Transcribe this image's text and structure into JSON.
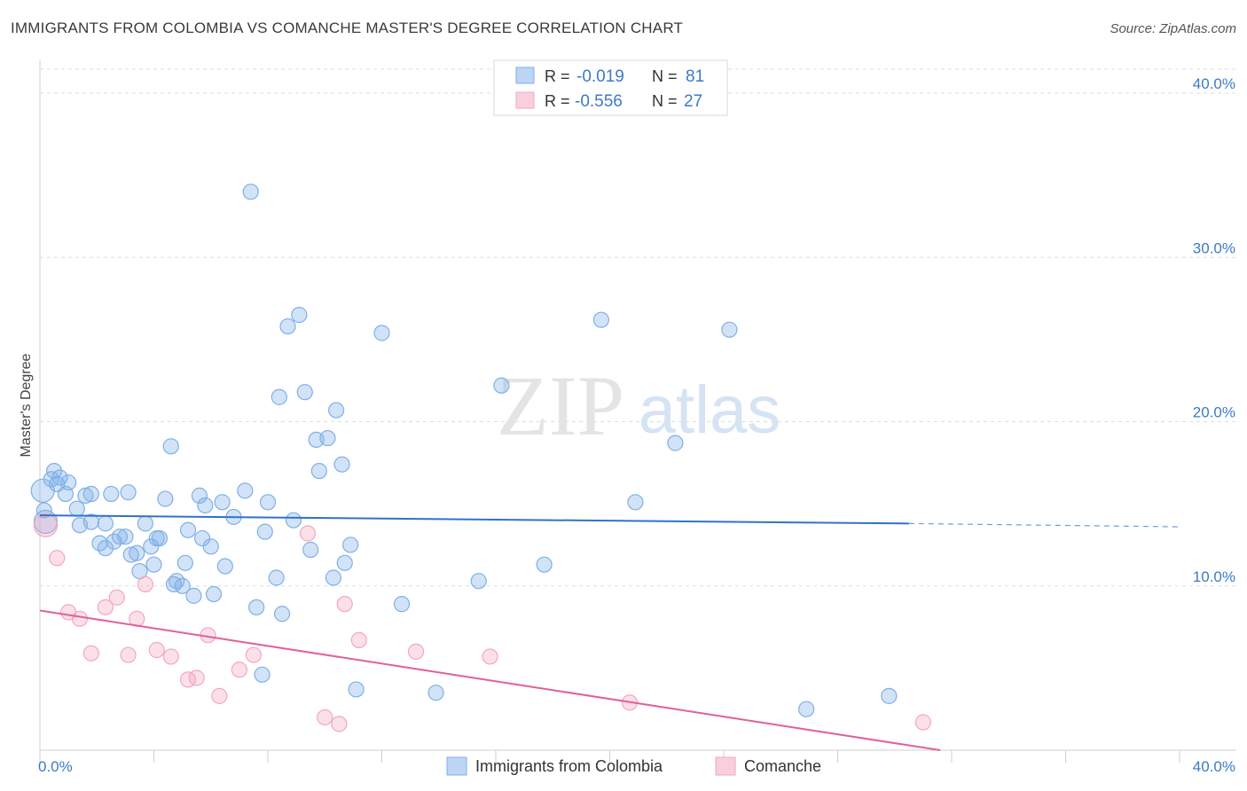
{
  "title": "IMMIGRANTS FROM COLOMBIA VS COMANCHE MASTER'S DEGREE CORRELATION CHART",
  "source": "Source: ZipAtlas.com",
  "watermark": {
    "zip": "ZIP",
    "atlas": "atlas"
  },
  "chart_data": {
    "type": "scatter",
    "xlabel": "",
    "ylabel": "Master's Degree",
    "xlim": [
      0,
      40
    ],
    "ylim": [
      0,
      42
    ],
    "x_tick_labels": [
      "0.0%",
      "40.0%"
    ],
    "y_ticks": [
      10,
      20,
      30,
      40
    ],
    "y_tick_labels": [
      "10.0%",
      "20.0%",
      "30.0%",
      "40.0%"
    ],
    "grid": true,
    "legend_position": "bottom",
    "stats": [
      {
        "r_label": "R =",
        "r_value": "-0.019",
        "n_label": "N =",
        "n_value": "81"
      },
      {
        "r_label": "R =",
        "r_value": "-0.556",
        "n_label": "N =",
        "n_value": "27"
      }
    ],
    "series": [
      {
        "name": "Immigrants from Colombia",
        "color": "#7fb0e8",
        "line_color": "#2f73c8",
        "trend": {
          "x": [
            0,
            30.5
          ],
          "y": [
            14.3,
            13.8
          ]
        },
        "trend_dashed": {
          "x": [
            30.5,
            40
          ],
          "y": [
            13.8,
            13.6
          ]
        },
        "points": [
          [
            0.2,
            13.9
          ],
          [
            0.1,
            15.8
          ],
          [
            0.5,
            17.0
          ],
          [
            0.4,
            16.5
          ],
          [
            0.7,
            16.6
          ],
          [
            0.6,
            16.2
          ],
          [
            1.0,
            16.3
          ],
          [
            0.9,
            15.6
          ],
          [
            1.3,
            14.7
          ],
          [
            1.4,
            13.7
          ],
          [
            1.6,
            15.5
          ],
          [
            1.8,
            15.6
          ],
          [
            1.8,
            13.9
          ],
          [
            2.1,
            12.6
          ],
          [
            2.3,
            12.3
          ],
          [
            2.3,
            13.8
          ],
          [
            2.5,
            15.6
          ],
          [
            2.6,
            12.7
          ],
          [
            2.8,
            13.0
          ],
          [
            3.0,
            13.0
          ],
          [
            3.1,
            15.7
          ],
          [
            3.2,
            11.9
          ],
          [
            3.4,
            12.0
          ],
          [
            3.5,
            10.9
          ],
          [
            3.7,
            13.8
          ],
          [
            3.9,
            12.4
          ],
          [
            4.0,
            11.3
          ],
          [
            4.1,
            12.9
          ],
          [
            4.2,
            12.9
          ],
          [
            4.4,
            15.3
          ],
          [
            4.6,
            18.5
          ],
          [
            4.7,
            10.1
          ],
          [
            4.8,
            10.3
          ],
          [
            5.0,
            10.0
          ],
          [
            5.1,
            11.4
          ],
          [
            5.2,
            13.4
          ],
          [
            5.4,
            9.4
          ],
          [
            5.6,
            15.5
          ],
          [
            5.7,
            12.9
          ],
          [
            5.8,
            14.9
          ],
          [
            6.0,
            12.4
          ],
          [
            6.1,
            9.5
          ],
          [
            6.4,
            15.1
          ],
          [
            6.5,
            11.2
          ],
          [
            6.8,
            14.2
          ],
          [
            7.2,
            15.8
          ],
          [
            7.4,
            34.0
          ],
          [
            7.6,
            8.7
          ],
          [
            7.8,
            4.6
          ],
          [
            7.9,
            13.3
          ],
          [
            8.0,
            15.1
          ],
          [
            8.3,
            10.5
          ],
          [
            8.4,
            21.5
          ],
          [
            8.5,
            8.3
          ],
          [
            8.7,
            25.8
          ],
          [
            8.9,
            14.0
          ],
          [
            9.1,
            26.5
          ],
          [
            9.3,
            21.8
          ],
          [
            9.5,
            12.2
          ],
          [
            9.7,
            18.9
          ],
          [
            9.8,
            17.0
          ],
          [
            10.1,
            19.0
          ],
          [
            10.3,
            10.5
          ],
          [
            10.4,
            20.7
          ],
          [
            10.6,
            17.4
          ],
          [
            10.7,
            11.4
          ],
          [
            10.9,
            12.5
          ],
          [
            11.1,
            3.7
          ],
          [
            12.0,
            25.4
          ],
          [
            12.7,
            8.9
          ],
          [
            13.9,
            3.5
          ],
          [
            15.4,
            10.3
          ],
          [
            16.2,
            22.2
          ],
          [
            17.7,
            11.3
          ],
          [
            19.7,
            26.2
          ],
          [
            20.9,
            15.1
          ],
          [
            22.3,
            18.7
          ],
          [
            24.2,
            25.6
          ],
          [
            26.9,
            2.5
          ],
          [
            29.8,
            3.3
          ],
          [
            0.15,
            14.6
          ]
        ]
      },
      {
        "name": "Comanche",
        "color": "#f4a7bf",
        "line_color": "#e0609a",
        "trend": {
          "x": [
            0,
            31.6
          ],
          "y": [
            8.5,
            0.0
          ]
        },
        "points": [
          [
            0.2,
            13.7
          ],
          [
            0.6,
            11.7
          ],
          [
            1.0,
            8.4
          ],
          [
            1.4,
            8.0
          ],
          [
            1.8,
            5.9
          ],
          [
            2.3,
            8.7
          ],
          [
            2.7,
            9.3
          ],
          [
            3.1,
            5.8
          ],
          [
            3.4,
            8.0
          ],
          [
            3.7,
            10.1
          ],
          [
            4.1,
            6.1
          ],
          [
            4.6,
            5.7
          ],
          [
            5.2,
            4.3
          ],
          [
            5.5,
            4.4
          ],
          [
            5.9,
            7.0
          ],
          [
            6.3,
            3.3
          ],
          [
            7.0,
            4.9
          ],
          [
            7.5,
            5.8
          ],
          [
            9.4,
            13.2
          ],
          [
            10.0,
            2.0
          ],
          [
            10.5,
            1.6
          ],
          [
            10.7,
            8.9
          ],
          [
            11.2,
            6.7
          ],
          [
            13.2,
            6.0
          ],
          [
            15.8,
            5.7
          ],
          [
            20.7,
            2.9
          ],
          [
            31.0,
            1.7
          ]
        ]
      }
    ]
  }
}
